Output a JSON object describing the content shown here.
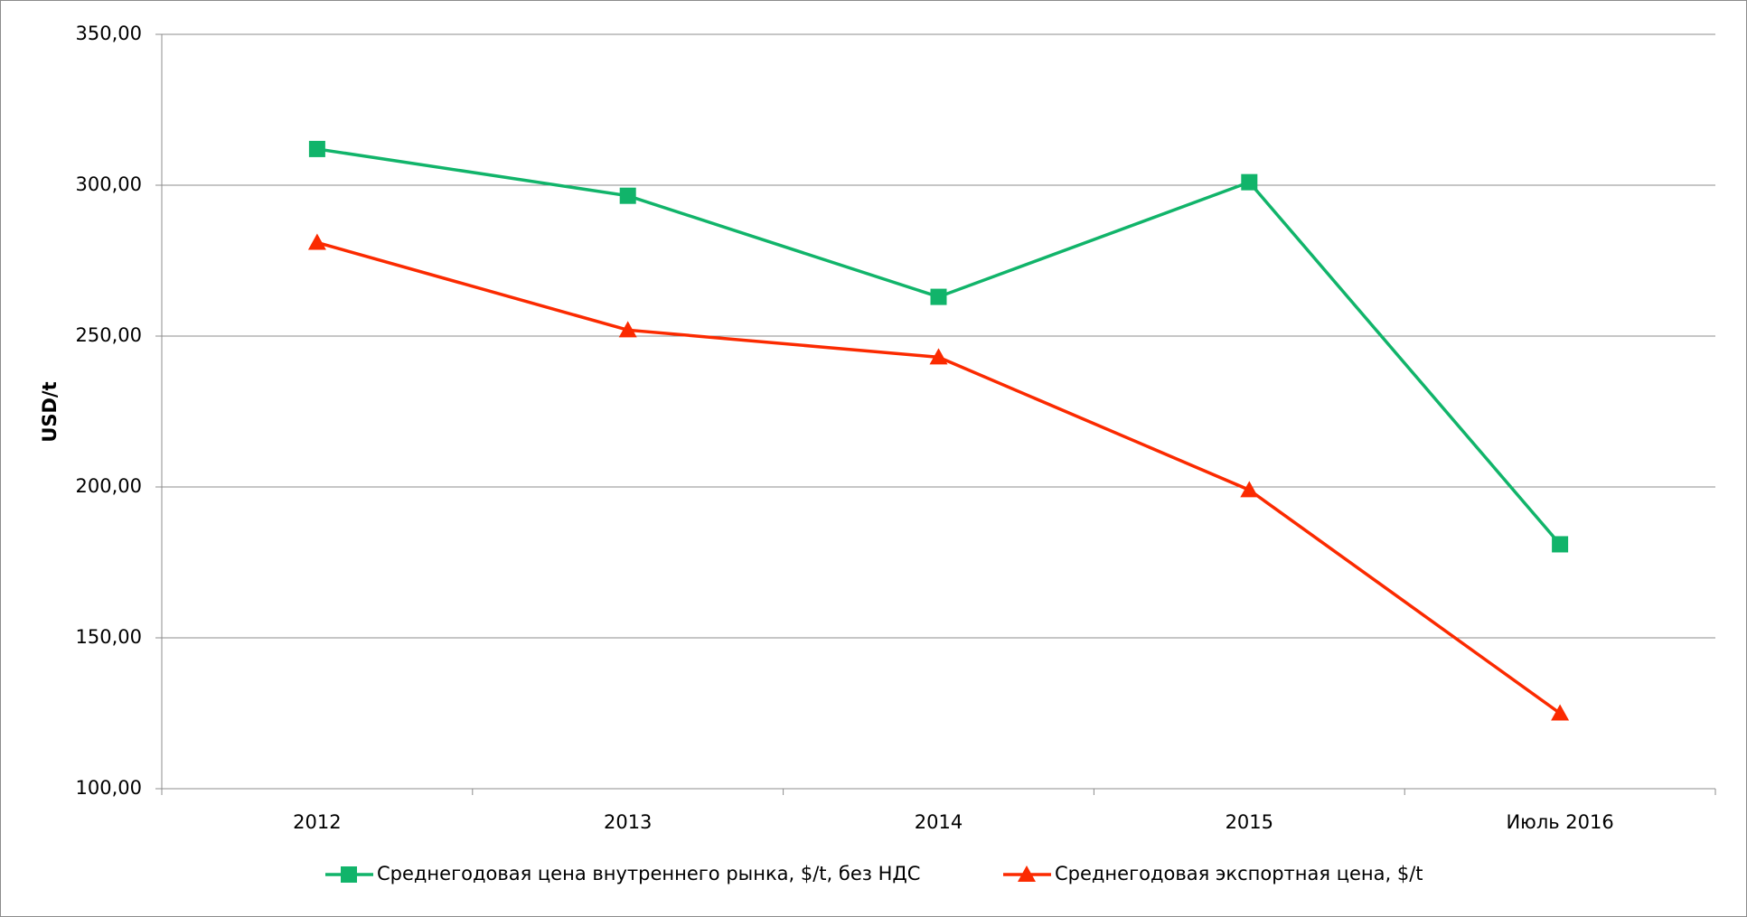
{
  "chart_data": {
    "type": "line",
    "y_label": "USD/t",
    "categories": [
      "2012",
      "2013",
      "2014",
      "2015",
      "Июль 2016"
    ],
    "series": [
      {
        "name": "Среднегодовая цена внутреннего рынка, $/t, без НДС",
        "color": "#11b46a",
        "marker": "square",
        "values": [
          312,
          296.5,
          263,
          301,
          181
        ]
      },
      {
        "name": "Среднегодовая экспортная цена, $/t",
        "color": "#fb2a00",
        "marker": "triangle",
        "values": [
          281,
          252,
          243,
          199,
          125
        ]
      }
    ],
    "ylim": [
      100,
      350
    ],
    "yticks": [
      {
        "value": 100,
        "label": "100,00"
      },
      {
        "value": 150,
        "label": "150,00"
      },
      {
        "value": 200,
        "label": "200,00"
      },
      {
        "value": 250,
        "label": "250,00"
      },
      {
        "value": 300,
        "label": "300,00"
      },
      {
        "value": 350,
        "label": "350,00"
      }
    ],
    "grid": true,
    "legend": "bottom"
  }
}
